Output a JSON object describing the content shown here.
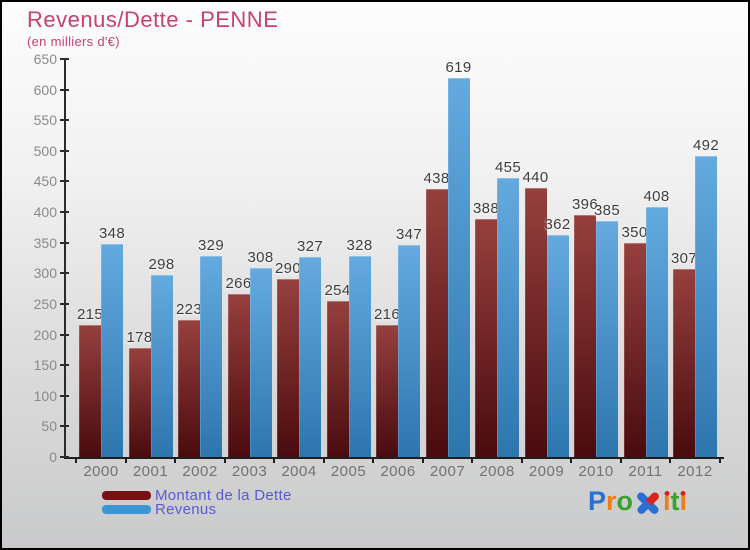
{
  "title": "Revenus/Dette - PENNE",
  "subtitle": "(en milliers d'€)",
  "chart_data": {
    "type": "bar",
    "categories": [
      "2000",
      "2001",
      "2002",
      "2003",
      "2004",
      "2005",
      "2006",
      "2007",
      "2008",
      "2009",
      "2010",
      "2011",
      "2012"
    ],
    "series": [
      {
        "name": "Montant de la Dette",
        "values": [
          215,
          178,
          223,
          266,
          290,
          254,
          216,
          438,
          388,
          440,
          396,
          350,
          307
        ],
        "bar_color_top": "#96403e",
        "bar_color_bottom": "#4a0b0e",
        "legend_color": "#771114"
      },
      {
        "name": "Revenus",
        "values": [
          348,
          298,
          329,
          308,
          327,
          328,
          347,
          619,
          455,
          362,
          385,
          408,
          492
        ],
        "bar_color_top": "#64aadf",
        "bar_color_bottom": "#2d76ad",
        "legend_color": "#3d96d4"
      }
    ],
    "ylabel": "en milliers d'€",
    "ylim": [
      0,
      650
    ],
    "ytick_step": 50,
    "yticks": [
      0,
      50,
      100,
      150,
      200,
      250,
      300,
      350,
      400,
      450,
      500,
      550,
      600,
      650
    ],
    "grid": false,
    "legend_position": "bottom-left",
    "value_labels": true
  },
  "logo": {
    "text": "Proxiti",
    "letters": [
      {
        "ch": "P",
        "style": "plain",
        "color": "#2a6fd2"
      },
      {
        "ch": "r",
        "style": "plain",
        "color": "#ef7d18"
      },
      {
        "ch": "o",
        "style": "plain",
        "color": "#3aa32d"
      },
      {
        "ch": "x",
        "style": "x-mark",
        "color": "#2a6fd2",
        "accent": "#d8251c"
      },
      {
        "ch": "i",
        "style": "dot-i",
        "color": "#ef7d18",
        "dot": "#d8251c"
      },
      {
        "ch": "t",
        "style": "plain",
        "color": "#3aa32d"
      },
      {
        "ch": "i",
        "style": "dot-i",
        "color": "#ef7d18",
        "dot": "#d8251c"
      }
    ]
  }
}
